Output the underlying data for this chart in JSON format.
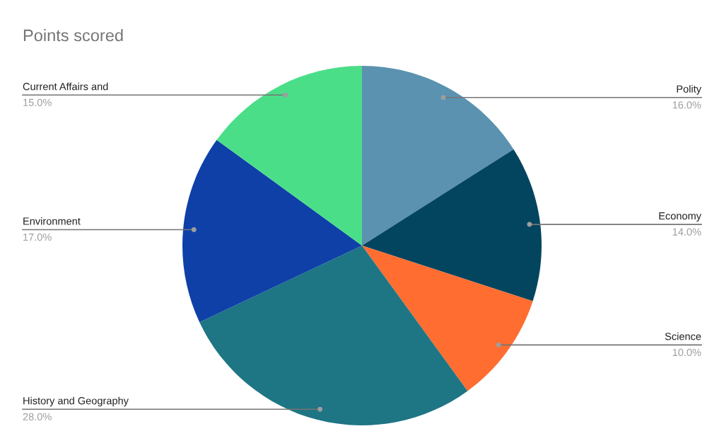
{
  "chart_data": {
    "type": "pie",
    "title": "Points scored",
    "categories": [
      "Polity",
      "Economy",
      "Science",
      "History and Geography",
      "Environment",
      "Current Affairs and"
    ],
    "values": [
      16,
      14,
      10,
      28,
      17,
      15
    ],
    "value_labels": [
      "16.0%",
      "14.0%",
      "10.0%",
      "28.0%",
      "17.0%",
      "15.0%"
    ],
    "colors": [
      "#5a92b0",
      "#03455f",
      "#ff6d31",
      "#1e7584",
      "#0e40a8",
      "#4bde89"
    ],
    "legend": false
  }
}
